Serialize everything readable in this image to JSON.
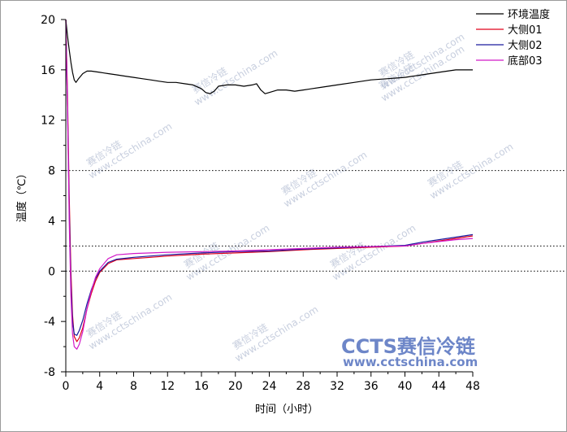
{
  "chart_data": {
    "type": "line",
    "title": "",
    "xlabel": "时间（小时）",
    "ylabel": "温度（℃）",
    "xlim": [
      0,
      48
    ],
    "ylim": [
      -8,
      20
    ],
    "x_ticks": [
      0,
      4,
      8,
      12,
      16,
      20,
      24,
      28,
      32,
      36,
      40,
      44,
      48
    ],
    "y_ticks": [
      -8,
      -4,
      0,
      4,
      8,
      12,
      16,
      20
    ],
    "grid": false,
    "reference_lines": [
      8,
      2,
      0
    ],
    "legend_position": "top-right",
    "series": [
      {
        "name": "环境温度",
        "color": "#000000",
        "x": [
          0,
          0.2,
          0.4,
          0.6,
          0.8,
          1,
          1.2,
          1.5,
          2,
          2.5,
          3,
          4,
          5,
          6,
          7,
          8,
          9,
          10,
          11,
          12,
          13,
          14,
          15,
          16,
          16.5,
          17,
          17.5,
          18,
          19,
          20,
          21,
          22,
          22.5,
          23,
          23.5,
          24,
          25,
          26,
          27,
          28,
          30,
          32,
          34,
          36,
          38,
          40,
          42,
          44,
          45,
          46,
          47,
          48
        ],
        "values": [
          20,
          18.7,
          17.6,
          16.6,
          15.8,
          15.2,
          15.0,
          15.3,
          15.7,
          15.9,
          15.9,
          15.8,
          15.7,
          15.6,
          15.5,
          15.4,
          15.3,
          15.2,
          15.1,
          15.0,
          15.0,
          14.9,
          14.8,
          14.5,
          14.2,
          14.1,
          14.3,
          14.7,
          14.8,
          14.8,
          14.7,
          14.8,
          14.9,
          14.4,
          14.1,
          14.2,
          14.4,
          14.4,
          14.3,
          14.4,
          14.6,
          14.8,
          15.0,
          15.2,
          15.3,
          15.4,
          15.6,
          15.8,
          15.9,
          16.0,
          16.0,
          16.0
        ]
      },
      {
        "name": "大侧01",
        "color": "#e0001b",
        "x": [
          0,
          0.2,
          0.4,
          0.6,
          0.8,
          1,
          1.3,
          1.6,
          2,
          2.5,
          3,
          3.5,
          4,
          5,
          6,
          8,
          10,
          12,
          16,
          20,
          24,
          28,
          32,
          36,
          40,
          42,
          44,
          46,
          48
        ],
        "values": [
          20,
          14,
          6,
          0,
          -3.5,
          -5.2,
          -5.6,
          -5.3,
          -4.5,
          -3.0,
          -1.8,
          -0.8,
          -0.1,
          0.6,
          0.9,
          1.0,
          1.1,
          1.2,
          1.35,
          1.45,
          1.55,
          1.7,
          1.8,
          1.9,
          2.0,
          2.2,
          2.4,
          2.6,
          2.8
        ]
      },
      {
        "name": "大侧02",
        "color": "#1a1a9e",
        "x": [
          0,
          0.2,
          0.4,
          0.6,
          0.8,
          1,
          1.3,
          1.6,
          2,
          2.5,
          3,
          3.5,
          4,
          5,
          6,
          8,
          10,
          12,
          16,
          20,
          24,
          28,
          32,
          36,
          40,
          42,
          44,
          46,
          48
        ],
        "values": [
          20,
          13,
          5,
          -1,
          -4.0,
          -5.0,
          -5.1,
          -4.7,
          -3.9,
          -2.6,
          -1.5,
          -0.6,
          0.0,
          0.7,
          0.95,
          1.1,
          1.2,
          1.3,
          1.45,
          1.55,
          1.6,
          1.75,
          1.85,
          1.95,
          2.05,
          2.3,
          2.5,
          2.7,
          2.9
        ]
      },
      {
        "name": "底部03",
        "color": "#d219c8",
        "x": [
          0,
          0.2,
          0.4,
          0.6,
          0.8,
          1,
          1.3,
          1.6,
          2,
          2.5,
          3,
          3.5,
          4,
          5,
          6,
          8,
          10,
          12,
          16,
          20,
          24,
          28,
          32,
          36,
          40,
          42,
          44,
          46,
          48
        ],
        "values": [
          20,
          13,
          4,
          -2,
          -5.0,
          -6.0,
          -6.2,
          -5.8,
          -4.8,
          -3.0,
          -1.6,
          -0.5,
          0.2,
          1.0,
          1.3,
          1.4,
          1.45,
          1.5,
          1.55,
          1.6,
          1.7,
          1.8,
          1.9,
          1.95,
          2.0,
          2.2,
          2.35,
          2.5,
          2.6
        ]
      }
    ]
  },
  "watermark": {
    "logo_text": "CCTS赛信冷链",
    "logo_url_text": "www.cctschina.com",
    "tile_cn": "赛信冷链",
    "tile_en": "www.cctschina.com"
  }
}
